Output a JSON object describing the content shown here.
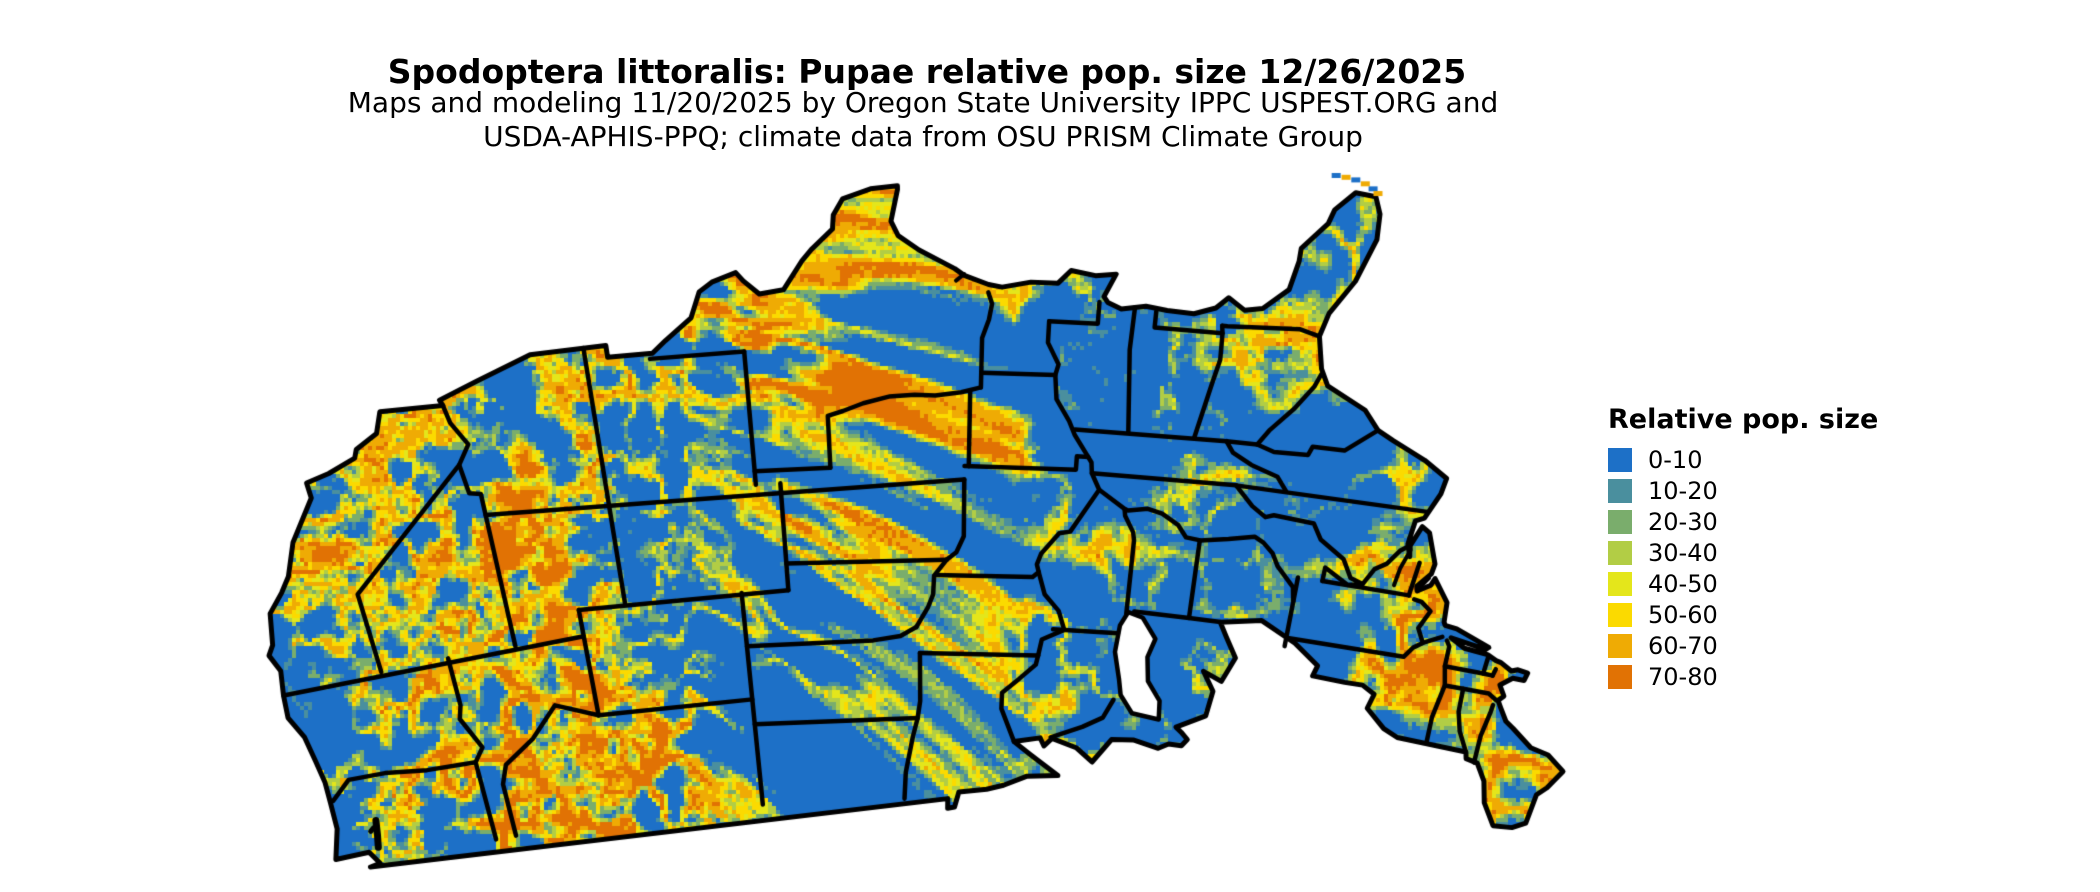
{
  "title": "Spodoptera littoralis: Pupae relative pop. size 12/26/2025",
  "subtitle_line1": "Maps and modeling 11/20/2025 by Oregon State University IPPC USPEST.ORG and",
  "subtitle_line2": "USDA-APHIS-PPQ; climate data from OSU PRISM Climate Group",
  "legend": {
    "title": "Relative pop. size",
    "items": [
      {
        "label": "0-10",
        "color": "#1d70c7"
      },
      {
        "label": "10-20",
        "color": "#4a8f9e"
      },
      {
        "label": "20-30",
        "color": "#7aad6c"
      },
      {
        "label": "30-40",
        "color": "#b2cd45"
      },
      {
        "label": "40-50",
        "color": "#e4e61b"
      },
      {
        "label": "50-60",
        "color": "#fbda00"
      },
      {
        "label": "60-70",
        "color": "#efab04"
      },
      {
        "label": "70-80",
        "color": "#e17204"
      }
    ]
  },
  "map": {
    "border_color": "#000000",
    "water_color": "#ffffff"
  }
}
